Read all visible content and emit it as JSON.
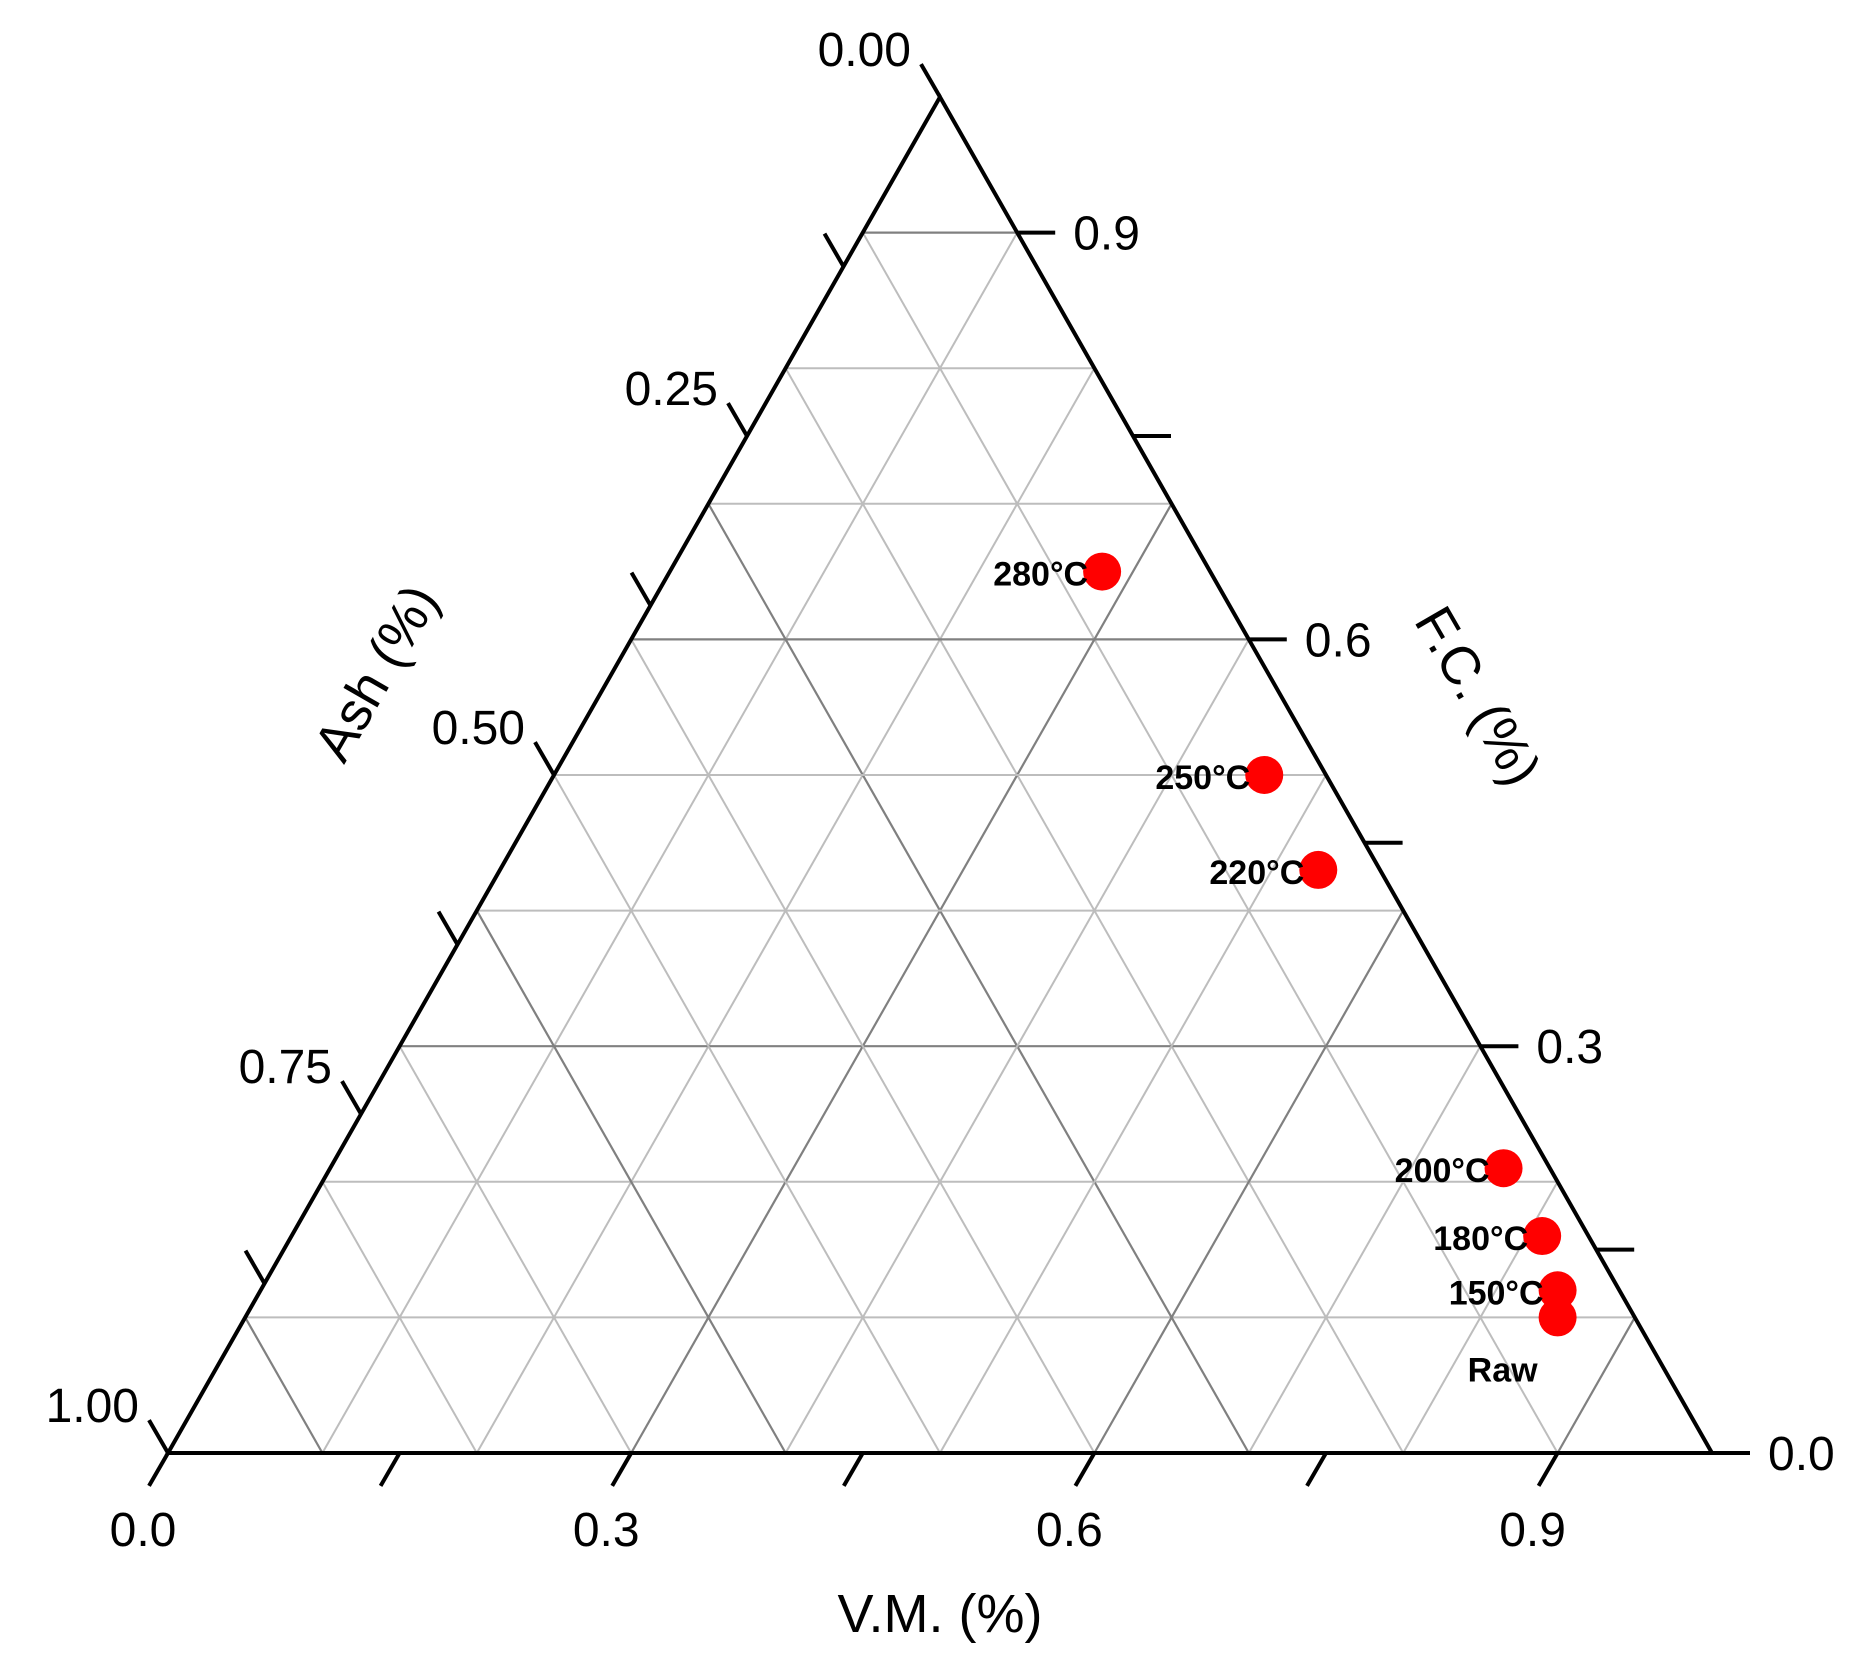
{
  "chart_data": {
    "type": "scatter",
    "subtype": "ternary",
    "axes": {
      "bottom": {
        "label": "V.M. (%)",
        "ticks": [
          "0.0",
          "0.3",
          "0.6",
          "0.9"
        ]
      },
      "left": {
        "label": "Ash (%)",
        "ticks": [
          "0.00",
          "0.25",
          "0.50",
          "0.75",
          "1.00"
        ]
      },
      "right": {
        "label": "F.C. (%)",
        "ticks": [
          "0.0",
          "0.3",
          "0.6",
          "0.9"
        ]
      }
    },
    "grid": true,
    "marker_color": "#ff0000",
    "points": [
      {
        "label": "Raw",
        "vm": 0.85,
        "fc": 0.1,
        "ash": 0.05
      },
      {
        "label": "150°C",
        "vm": 0.84,
        "fc": 0.12,
        "ash": 0.04
      },
      {
        "label": "180°C",
        "vm": 0.81,
        "fc": 0.16,
        "ash": 0.03
      },
      {
        "label": "200°C",
        "vm": 0.76,
        "fc": 0.21,
        "ash": 0.03
      },
      {
        "label": "220°C",
        "vm": 0.53,
        "fc": 0.43,
        "ash": 0.04
      },
      {
        "label": "250°C",
        "vm": 0.46,
        "fc": 0.5,
        "ash": 0.04
      },
      {
        "label": "280°C",
        "vm": 0.28,
        "fc": 0.65,
        "ash": 0.07
      }
    ]
  }
}
